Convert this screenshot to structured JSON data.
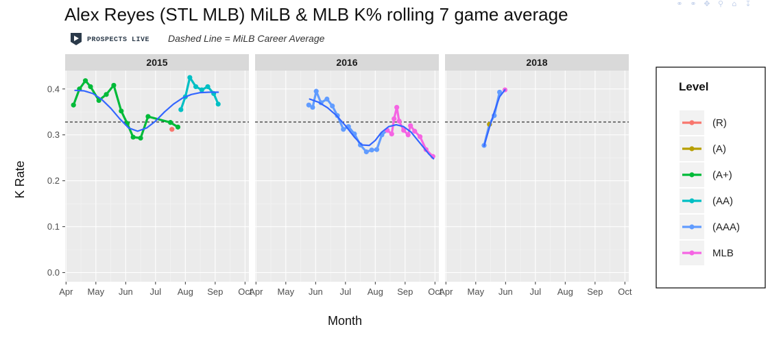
{
  "toolbar": {
    "icons": [
      "compare-icon",
      "pin-icon",
      "move-icon",
      "zoom-icon",
      "home-icon",
      "download-icon"
    ]
  },
  "chart_data": {
    "type": "line",
    "title": "Alex Reyes (STL MLB) MiLB & MLB K% rolling 7 game average",
    "subtitle": "Dashed Line = MiLB Career Average",
    "brand": "PROSPECTS LIVE",
    "xlabel": "Month",
    "ylabel": "K Rate",
    "ylim": [
      -0.02,
      0.44
    ],
    "yticks": [
      0.0,
      0.1,
      0.2,
      0.3,
      0.4
    ],
    "ytick_labels": [
      "0.0",
      "0.1",
      "0.2",
      "0.3",
      "0.4"
    ],
    "xlim": [
      3.97,
      10.13
    ],
    "xticks": [
      4,
      5,
      6,
      7,
      8,
      9,
      10
    ],
    "xtick_labels": [
      "Apr",
      "May",
      "Jun",
      "Jul",
      "Aug",
      "Sep",
      "Oct"
    ],
    "milb_career_average": 0.328,
    "panel_background": "#ebebeb",
    "strip_background": "#d9d9d9",
    "grid": true,
    "legend": {
      "title": "Level",
      "position": "right",
      "entries": [
        {
          "label": "(R)",
          "color": "#F8766D"
        },
        {
          "label": "(A)",
          "color": "#B79F00"
        },
        {
          "label": "(A+)",
          "color": "#00BA38"
        },
        {
          "label": "(AA)",
          "color": "#00BFC4"
        },
        {
          "label": "(AAA)",
          "color": "#619CFF"
        },
        {
          "label": "MLB",
          "color": "#F564E3"
        }
      ]
    },
    "smooth_color": "#3366FF",
    "facets": [
      {
        "label": "2015",
        "series": [
          {
            "level": "(A+)",
            "color": "#00BA38",
            "x": [
              4.25,
              4.45,
              4.65,
              4.82,
              5.1,
              5.35,
              5.6,
              5.85,
              6.05,
              6.25,
              6.5,
              6.75,
              7.5,
              7.75
            ],
            "y": [
              0.365,
              0.4,
              0.418,
              0.405,
              0.375,
              0.388,
              0.408,
              0.352,
              0.325,
              0.295,
              0.293,
              0.34,
              0.327,
              0.317
            ]
          },
          {
            "level": "(R)",
            "color": "#F8766D",
            "x": [
              7.55
            ],
            "y": [
              0.312
            ]
          },
          {
            "level": "(AA)",
            "color": "#00BFC4",
            "x": [
              7.85,
              8.0,
              8.15,
              8.35,
              8.55,
              8.75,
              8.95,
              9.1
            ],
            "y": [
              0.355,
              0.383,
              0.425,
              0.405,
              0.398,
              0.405,
              0.39,
              0.367
            ]
          }
        ],
        "smooth": {
          "x": [
            4.3,
            4.6,
            4.9,
            5.2,
            5.5,
            5.8,
            6.1,
            6.4,
            6.7,
            7.0,
            7.3,
            7.6,
            7.9,
            8.2,
            8.5,
            8.8,
            9.1
          ],
          "y": [
            0.397,
            0.396,
            0.39,
            0.377,
            0.358,
            0.335,
            0.315,
            0.308,
            0.315,
            0.33,
            0.35,
            0.367,
            0.38,
            0.388,
            0.392,
            0.393,
            0.393
          ]
        }
      },
      {
        "label": "2016",
        "series": [
          {
            "level": "(AAA)",
            "color": "#619CFF",
            "x": [
              5.77,
              5.9,
              6.02,
              6.18,
              6.38,
              6.56,
              6.73,
              6.93,
              7.1,
              7.3,
              7.5,
              7.7,
              7.88,
              8.05,
              8.22,
              8.4
            ],
            "y": [
              0.365,
              0.36,
              0.395,
              0.37,
              0.378,
              0.363,
              0.342,
              0.312,
              0.318,
              0.302,
              0.278,
              0.263,
              0.267,
              0.268,
              0.3,
              0.31
            ]
          },
          {
            "level": "MLB",
            "color": "#F564E3",
            "x": [
              8.4,
              8.55,
              8.63,
              8.72,
              8.8,
              8.95,
              9.1,
              9.18,
              9.32,
              9.5,
              9.7,
              9.93
            ],
            "y": [
              0.31,
              0.302,
              0.335,
              0.36,
              0.33,
              0.31,
              0.3,
              0.32,
              0.308,
              0.296,
              0.268,
              0.253
            ]
          }
        ],
        "smooth": {
          "x": [
            5.8,
            6.1,
            6.4,
            6.7,
            7.0,
            7.3,
            7.55,
            7.8,
            8.0,
            8.2,
            8.45,
            8.7,
            8.95,
            9.2,
            9.4,
            9.6,
            9.8,
            9.95
          ],
          "y": [
            0.378,
            0.371,
            0.359,
            0.342,
            0.32,
            0.295,
            0.278,
            0.277,
            0.288,
            0.305,
            0.318,
            0.322,
            0.318,
            0.306,
            0.29,
            0.274,
            0.258,
            0.248
          ]
        }
      },
      {
        "label": "2018",
        "series": [
          {
            "level": "(AAA)",
            "color": "#619CFF",
            "x": [
              5.28,
              5.46,
              5.62,
              5.8
            ],
            "y": [
              0.277,
              0.323,
              0.342,
              0.393
            ]
          },
          {
            "level": "(A)",
            "color": "#B79F00",
            "x": [
              5.46
            ],
            "y": [
              0.323
            ]
          },
          {
            "level": "MLB",
            "color": "#F564E3",
            "x": [
              5.98
            ],
            "y": [
              0.398
            ]
          }
        ],
        "smooth": {
          "x": [
            5.28,
            5.45,
            5.62,
            5.8,
            5.98
          ],
          "y": [
            0.276,
            0.314,
            0.35,
            0.383,
            0.398
          ]
        }
      }
    ]
  }
}
